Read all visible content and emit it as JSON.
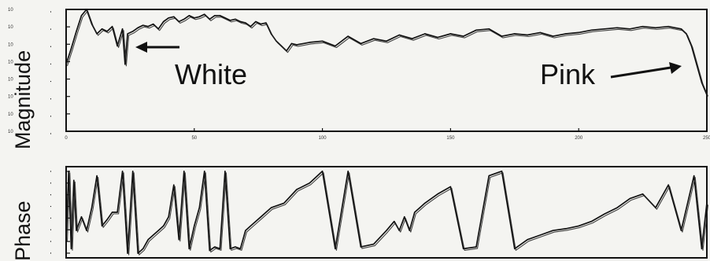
{
  "chart_data": [
    {
      "type": "line",
      "ylabel": "Magnitude",
      "xlim": [
        0,
        250
      ],
      "x_ticks": [
        "0",
        "50",
        "100",
        "150",
        "200",
        "250"
      ],
      "y_tick_labels": [
        "10",
        "10",
        "10",
        "10",
        "10",
        "10",
        "10",
        "10"
      ],
      "annotations": [
        "White",
        "Pink"
      ],
      "series": [
        {
          "x": [
            0,
            2,
            4,
            6,
            8,
            10,
            12,
            14,
            16,
            18,
            20,
            22,
            23,
            24,
            26,
            28,
            30,
            32,
            34,
            36,
            38,
            40,
            42,
            44,
            46,
            48,
            50,
            52,
            54,
            56,
            58,
            60,
            62,
            64,
            66,
            68,
            70,
            72,
            74,
            76,
            78,
            80,
            82,
            84,
            86,
            88,
            90,
            95,
            100,
            105,
            110,
            115,
            120,
            125,
            130,
            135,
            140,
            145,
            150,
            155,
            160,
            165,
            170,
            175,
            180,
            185,
            190,
            195,
            200,
            205,
            210,
            215,
            220,
            225,
            230,
            235,
            240,
            242,
            244,
            246,
            248,
            250
          ],
          "y": [
            0.55,
            0.68,
            0.82,
            0.95,
            1.0,
            0.88,
            0.8,
            0.84,
            0.82,
            0.86,
            0.7,
            0.84,
            0.55,
            0.8,
            0.82,
            0.85,
            0.87,
            0.86,
            0.88,
            0.84,
            0.9,
            0.93,
            0.94,
            0.9,
            0.92,
            0.95,
            0.93,
            0.94,
            0.96,
            0.92,
            0.95,
            0.95,
            0.93,
            0.91,
            0.92,
            0.9,
            0.89,
            0.86,
            0.9,
            0.88,
            0.89,
            0.8,
            0.74,
            0.7,
            0.66,
            0.72,
            0.71,
            0.73,
            0.74,
            0.7,
            0.78,
            0.72,
            0.76,
            0.74,
            0.79,
            0.76,
            0.8,
            0.77,
            0.8,
            0.78,
            0.83,
            0.84,
            0.78,
            0.8,
            0.79,
            0.81,
            0.78,
            0.8,
            0.81,
            0.83,
            0.84,
            0.85,
            0.84,
            0.86,
            0.85,
            0.86,
            0.84,
            0.8,
            0.7,
            0.55,
            0.4,
            0.3
          ]
        }
      ]
    },
    {
      "type": "line",
      "ylabel": "Phase",
      "xlim": [
        0,
        250
      ],
      "series": [
        {
          "x": [
            0,
            1,
            2,
            3,
            4,
            6,
            8,
            10,
            12,
            14,
            16,
            18,
            20,
            22,
            24,
            26,
            28,
            30,
            32,
            34,
            36,
            38,
            40,
            42,
            44,
            46,
            48,
            50,
            52,
            54,
            56,
            58,
            60,
            62,
            64,
            66,
            68,
            70,
            72,
            74,
            76,
            78,
            80,
            85,
            90,
            95,
            100,
            105,
            110,
            115,
            120,
            125,
            128,
            130,
            132,
            134,
            136,
            138,
            140,
            145,
            150,
            155,
            160,
            165,
            170,
            175,
            180,
            185,
            190,
            195,
            200,
            205,
            210,
            215,
            220,
            225,
            230,
            235,
            240,
            245,
            248,
            250
          ],
          "y": [
            0.2,
            0.95,
            0.1,
            0.85,
            0.3,
            0.45,
            0.3,
            0.55,
            0.9,
            0.35,
            0.42,
            0.5,
            0.5,
            0.95,
            0.05,
            0.95,
            0.05,
            0.1,
            0.2,
            0.25,
            0.3,
            0.35,
            0.45,
            0.8,
            0.2,
            0.95,
            0.1,
            0.35,
            0.55,
            0.95,
            0.08,
            0.12,
            0.1,
            0.95,
            0.1,
            0.12,
            0.1,
            0.3,
            0.35,
            0.4,
            0.45,
            0.5,
            0.55,
            0.6,
            0.75,
            0.82,
            0.95,
            0.1,
            0.95,
            0.12,
            0.15,
            0.3,
            0.4,
            0.3,
            0.45,
            0.3,
            0.5,
            0.55,
            0.6,
            0.7,
            0.78,
            0.1,
            0.12,
            0.9,
            0.95,
            0.1,
            0.2,
            0.25,
            0.3,
            0.32,
            0.35,
            0.4,
            0.48,
            0.55,
            0.65,
            0.7,
            0.55,
            0.8,
            0.3,
            0.9,
            0.1,
            0.6
          ]
        }
      ]
    }
  ]
}
